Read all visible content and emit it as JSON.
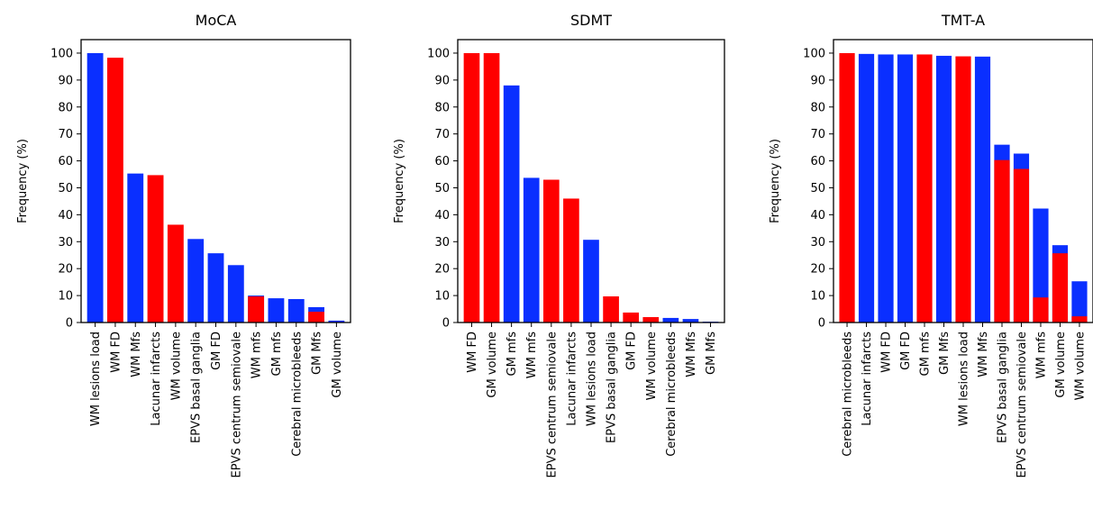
{
  "colors": {
    "red": "#ff0000",
    "blue": "#0a2fff"
  },
  "chart_data": [
    {
      "type": "bar",
      "title": "MoCA",
      "ylabel": "Frequency (%)",
      "xlabel": "",
      "ylim": [
        0,
        105
      ],
      "yticks": [
        0,
        10,
        20,
        30,
        40,
        50,
        60,
        70,
        80,
        90,
        100
      ],
      "categories": [
        "WM lesions load",
        "WM FD",
        "WM Mfs",
        "Lacunar infarcts",
        "WM volume",
        "EPVS basal ganglia",
        "GM FD",
        "EPVS centrum semiovale",
        "WM mfs",
        "GM mfs",
        "Cerebral microbleeds",
        "GM Mfs",
        "GM volume"
      ],
      "series": [
        {
          "color": "blue",
          "values": [
            100,
            0,
            55.3,
            0,
            0,
            31,
            25.7,
            21.3,
            10,
            9,
            8.7,
            5.7,
            0.7
          ]
        },
        {
          "color": "red",
          "values": [
            0,
            98.3,
            0,
            54.7,
            36.3,
            0,
            0,
            0,
            9.7,
            0,
            0,
            4,
            0
          ]
        }
      ]
    },
    {
      "type": "bar",
      "title": "SDMT",
      "ylabel": "Frequency (%)",
      "xlabel": "",
      "ylim": [
        0,
        105
      ],
      "yticks": [
        0,
        10,
        20,
        30,
        40,
        50,
        60,
        70,
        80,
        90,
        100
      ],
      "categories": [
        "WM FD",
        "GM volume",
        "GM mfs",
        "WM mfs",
        "EPVS centrum semiovale",
        "Lacunar infarcts",
        "WM lesions load",
        "EPVS basal ganglia",
        "GM FD",
        "WM volume",
        "Cerebral microbleeds",
        "WM Mfs",
        "GM Mfs"
      ],
      "series": [
        {
          "color": "blue",
          "values": [
            0,
            0,
            88,
            53.7,
            0,
            0,
            30.7,
            0,
            0,
            0,
            1.7,
            1.3,
            0.3
          ]
        },
        {
          "color": "red",
          "values": [
            100,
            100,
            0,
            0,
            53,
            46,
            0,
            9.7,
            3.7,
            2,
            0,
            0,
            0
          ]
        }
      ]
    },
    {
      "type": "bar",
      "title": "TMT-A",
      "ylabel": "Frequency (%)",
      "xlabel": "",
      "ylim": [
        0,
        105
      ],
      "yticks": [
        0,
        10,
        20,
        30,
        40,
        50,
        60,
        70,
        80,
        90,
        100
      ],
      "categories": [
        "Cerebral microbleeds",
        "Lacunar infarcts",
        "WM FD",
        "GM FD",
        "GM mfs",
        "GM Mfs",
        "WM lesions load",
        "WM Mfs",
        "EPVS basal ganglia",
        "EPVS centrum semiovale",
        "WM mfs",
        "GM volume",
        "WM volume"
      ],
      "series": [
        {
          "color": "blue",
          "values": [
            0,
            99.7,
            99.5,
            99.5,
            0,
            99,
            0,
            98.7,
            66,
            62.7,
            42.3,
            28.7,
            15.3
          ]
        },
        {
          "color": "red",
          "values": [
            100,
            0,
            0,
            0,
            99.5,
            0,
            98.8,
            0,
            60.3,
            57,
            9.3,
            25.7,
            2.3
          ]
        }
      ]
    }
  ]
}
